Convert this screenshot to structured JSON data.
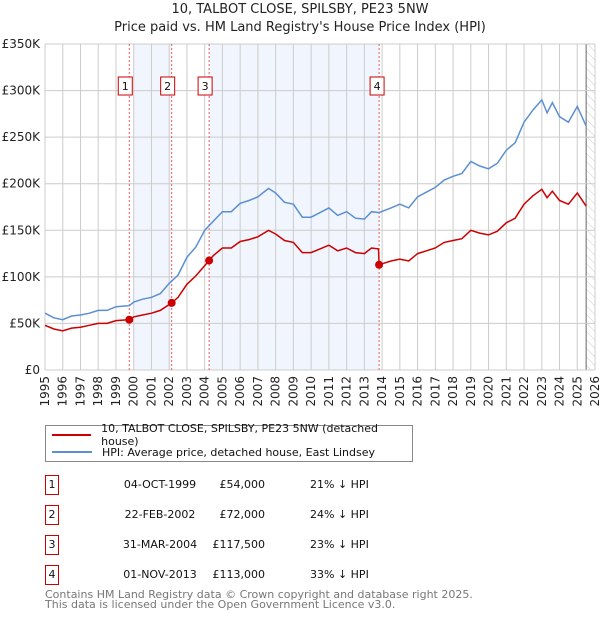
{
  "chart_data": {
    "type": "line",
    "title": "10, TALBOT CLOSE, SPILSBY, PE23 5NW",
    "subtitle": "Price paid vs. HM Land Registry's House Price Index (HPI)",
    "xlim": [
      1995,
      2026
    ],
    "ylim": [
      0,
      350000
    ],
    "y_ticks": [
      {
        "v": 0,
        "label": "£0"
      },
      {
        "v": 50000,
        "label": "£50K"
      },
      {
        "v": 100000,
        "label": "£100K"
      },
      {
        "v": 150000,
        "label": "£150K"
      },
      {
        "v": 200000,
        "label": "£200K"
      },
      {
        "v": 250000,
        "label": "£250K"
      },
      {
        "v": 300000,
        "label": "£300K"
      },
      {
        "v": 350000,
        "label": "£350K"
      }
    ],
    "x_ticks": [
      "1995",
      "1996",
      "1997",
      "1998",
      "1999",
      "2000",
      "2001",
      "2002",
      "2003",
      "2004",
      "2005",
      "2006",
      "2007",
      "2008",
      "2009",
      "2010",
      "2011",
      "2012",
      "2013",
      "2014",
      "2015",
      "2016",
      "2017",
      "2018",
      "2019",
      "2020",
      "2021",
      "2022",
      "2023",
      "2024",
      "2025",
      "2026"
    ],
    "grid": true,
    "shaded_bands": [
      [
        2000,
        2002.14
      ],
      [
        2004.25,
        2013.83
      ]
    ],
    "forecast_hatch_from": 2025.5,
    "series": [
      {
        "name": "10, TALBOT CLOSE, SPILSBY, PE23 5NW (detached house)",
        "color": "#cc0000",
        "points": [
          [
            1995,
            48
          ],
          [
            1995.5,
            44
          ],
          [
            1996,
            42
          ],
          [
            1996.5,
            45
          ],
          [
            1997,
            46
          ],
          [
            1997.5,
            48
          ],
          [
            1998,
            50
          ],
          [
            1998.5,
            50
          ],
          [
            1999,
            53
          ],
          [
            1999.75,
            54
          ],
          [
            2000,
            57
          ],
          [
            2000.5,
            59
          ],
          [
            2001,
            61
          ],
          [
            2001.5,
            64
          ],
          [
            2002.14,
            72
          ],
          [
            2002.5,
            78
          ],
          [
            2003,
            92
          ],
          [
            2003.5,
            101
          ],
          [
            2004.25,
            117.5
          ],
          [
            2004.5,
            123
          ],
          [
            2005,
            131
          ],
          [
            2005.5,
            131
          ],
          [
            2006,
            138
          ],
          [
            2006.5,
            140
          ],
          [
            2007,
            143
          ],
          [
            2007.6,
            150
          ],
          [
            2008,
            146
          ],
          [
            2008.5,
            139
          ],
          [
            2009,
            137
          ],
          [
            2009.5,
            126
          ],
          [
            2010,
            126
          ],
          [
            2010.5,
            130
          ],
          [
            2011,
            134
          ],
          [
            2011.5,
            128
          ],
          [
            2012,
            131
          ],
          [
            2012.5,
            126
          ],
          [
            2013,
            125
          ],
          [
            2013.4,
            131
          ],
          [
            2013.8,
            130
          ],
          [
            2013.83,
            113
          ],
          [
            2014.5,
            117
          ],
          [
            2015,
            119
          ],
          [
            2015.5,
            117
          ],
          [
            2016,
            125
          ],
          [
            2016.5,
            128
          ],
          [
            2017,
            131
          ],
          [
            2017.5,
            137
          ],
          [
            2018,
            139
          ],
          [
            2018.5,
            141
          ],
          [
            2019,
            150
          ],
          [
            2019.5,
            147
          ],
          [
            2020,
            145
          ],
          [
            2020.5,
            149
          ],
          [
            2021,
            158
          ],
          [
            2021.5,
            163
          ],
          [
            2022,
            178
          ],
          [
            2022.5,
            187
          ],
          [
            2023,
            194
          ],
          [
            2023.3,
            185
          ],
          [
            2023.6,
            192
          ],
          [
            2024,
            182
          ],
          [
            2024.5,
            178
          ],
          [
            2025,
            190
          ],
          [
            2025.5,
            176
          ]
        ]
      },
      {
        "name": "HPI: Average price, detached house, East Lindsey",
        "color": "#5b8fd1",
        "points": [
          [
            1995,
            61
          ],
          [
            1995.5,
            56
          ],
          [
            1996,
            54
          ],
          [
            1996.5,
            58
          ],
          [
            1997,
            59
          ],
          [
            1997.5,
            61
          ],
          [
            1998,
            64
          ],
          [
            1998.5,
            64
          ],
          [
            1999,
            68
          ],
          [
            1999.75,
            69
          ],
          [
            2000,
            73
          ],
          [
            2000.5,
            76
          ],
          [
            2001,
            78
          ],
          [
            2001.5,
            82
          ],
          [
            2002,
            93
          ],
          [
            2002.5,
            102
          ],
          [
            2003,
            121
          ],
          [
            2003.5,
            132
          ],
          [
            2004,
            150
          ],
          [
            2004.5,
            160
          ],
          [
            2005,
            170
          ],
          [
            2005.5,
            170
          ],
          [
            2006,
            179
          ],
          [
            2006.5,
            182
          ],
          [
            2007,
            186
          ],
          [
            2007.6,
            195
          ],
          [
            2008,
            190
          ],
          [
            2008.5,
            180
          ],
          [
            2009,
            178
          ],
          [
            2009.5,
            164
          ],
          [
            2010,
            164
          ],
          [
            2010.5,
            169
          ],
          [
            2011,
            174
          ],
          [
            2011.5,
            166
          ],
          [
            2012,
            170
          ],
          [
            2012.5,
            163
          ],
          [
            2013,
            162
          ],
          [
            2013.4,
            170
          ],
          [
            2013.83,
            169
          ],
          [
            2014.5,
            174
          ],
          [
            2015,
            178
          ],
          [
            2015.5,
            174
          ],
          [
            2016,
            186
          ],
          [
            2016.5,
            191
          ],
          [
            2017,
            196
          ],
          [
            2017.5,
            204
          ],
          [
            2018,
            208
          ],
          [
            2018.5,
            211
          ],
          [
            2019,
            224
          ],
          [
            2019.5,
            219
          ],
          [
            2020,
            216
          ],
          [
            2020.5,
            222
          ],
          [
            2021,
            236
          ],
          [
            2021.5,
            244
          ],
          [
            2022,
            266
          ],
          [
            2022.5,
            279
          ],
          [
            2023,
            290
          ],
          [
            2023.3,
            276
          ],
          [
            2023.6,
            287
          ],
          [
            2024,
            272
          ],
          [
            2024.5,
            266
          ],
          [
            2025,
            283
          ],
          [
            2025.5,
            262
          ]
        ]
      }
    ],
    "value_unit": "thousands GBP",
    "sales": [
      {
        "n": "1",
        "year": 1999.75,
        "price": 54
      },
      {
        "n": "2",
        "year": 2002.14,
        "price": 72
      },
      {
        "n": "3",
        "year": 2004.25,
        "price": 117.5
      },
      {
        "n": "4",
        "year": 2013.83,
        "price": 113
      }
    ],
    "legend_position": "below"
  },
  "legend": {
    "property": "10, TALBOT CLOSE, SPILSBY, PE23 5NW (detached house)",
    "hpi": "HPI: Average price, detached house, East Lindsey"
  },
  "table": [
    {
      "n": "1",
      "date": "04-OCT-1999",
      "price": "£54,000",
      "hpi": "21% ↓ HPI"
    },
    {
      "n": "2",
      "date": "22-FEB-2002",
      "price": "£72,000",
      "hpi": "24% ↓ HPI"
    },
    {
      "n": "3",
      "date": "31-MAR-2004",
      "price": "£117,500",
      "hpi": "23% ↓ HPI"
    },
    {
      "n": "4",
      "date": "01-NOV-2013",
      "price": "£113,000",
      "hpi": "33% ↓ HPI"
    }
  ],
  "footer": {
    "line1": "Contains HM Land Registry data © Crown copyright and database right 2025.",
    "line2": "This data is licensed under the Open Government Licence v3.0."
  }
}
